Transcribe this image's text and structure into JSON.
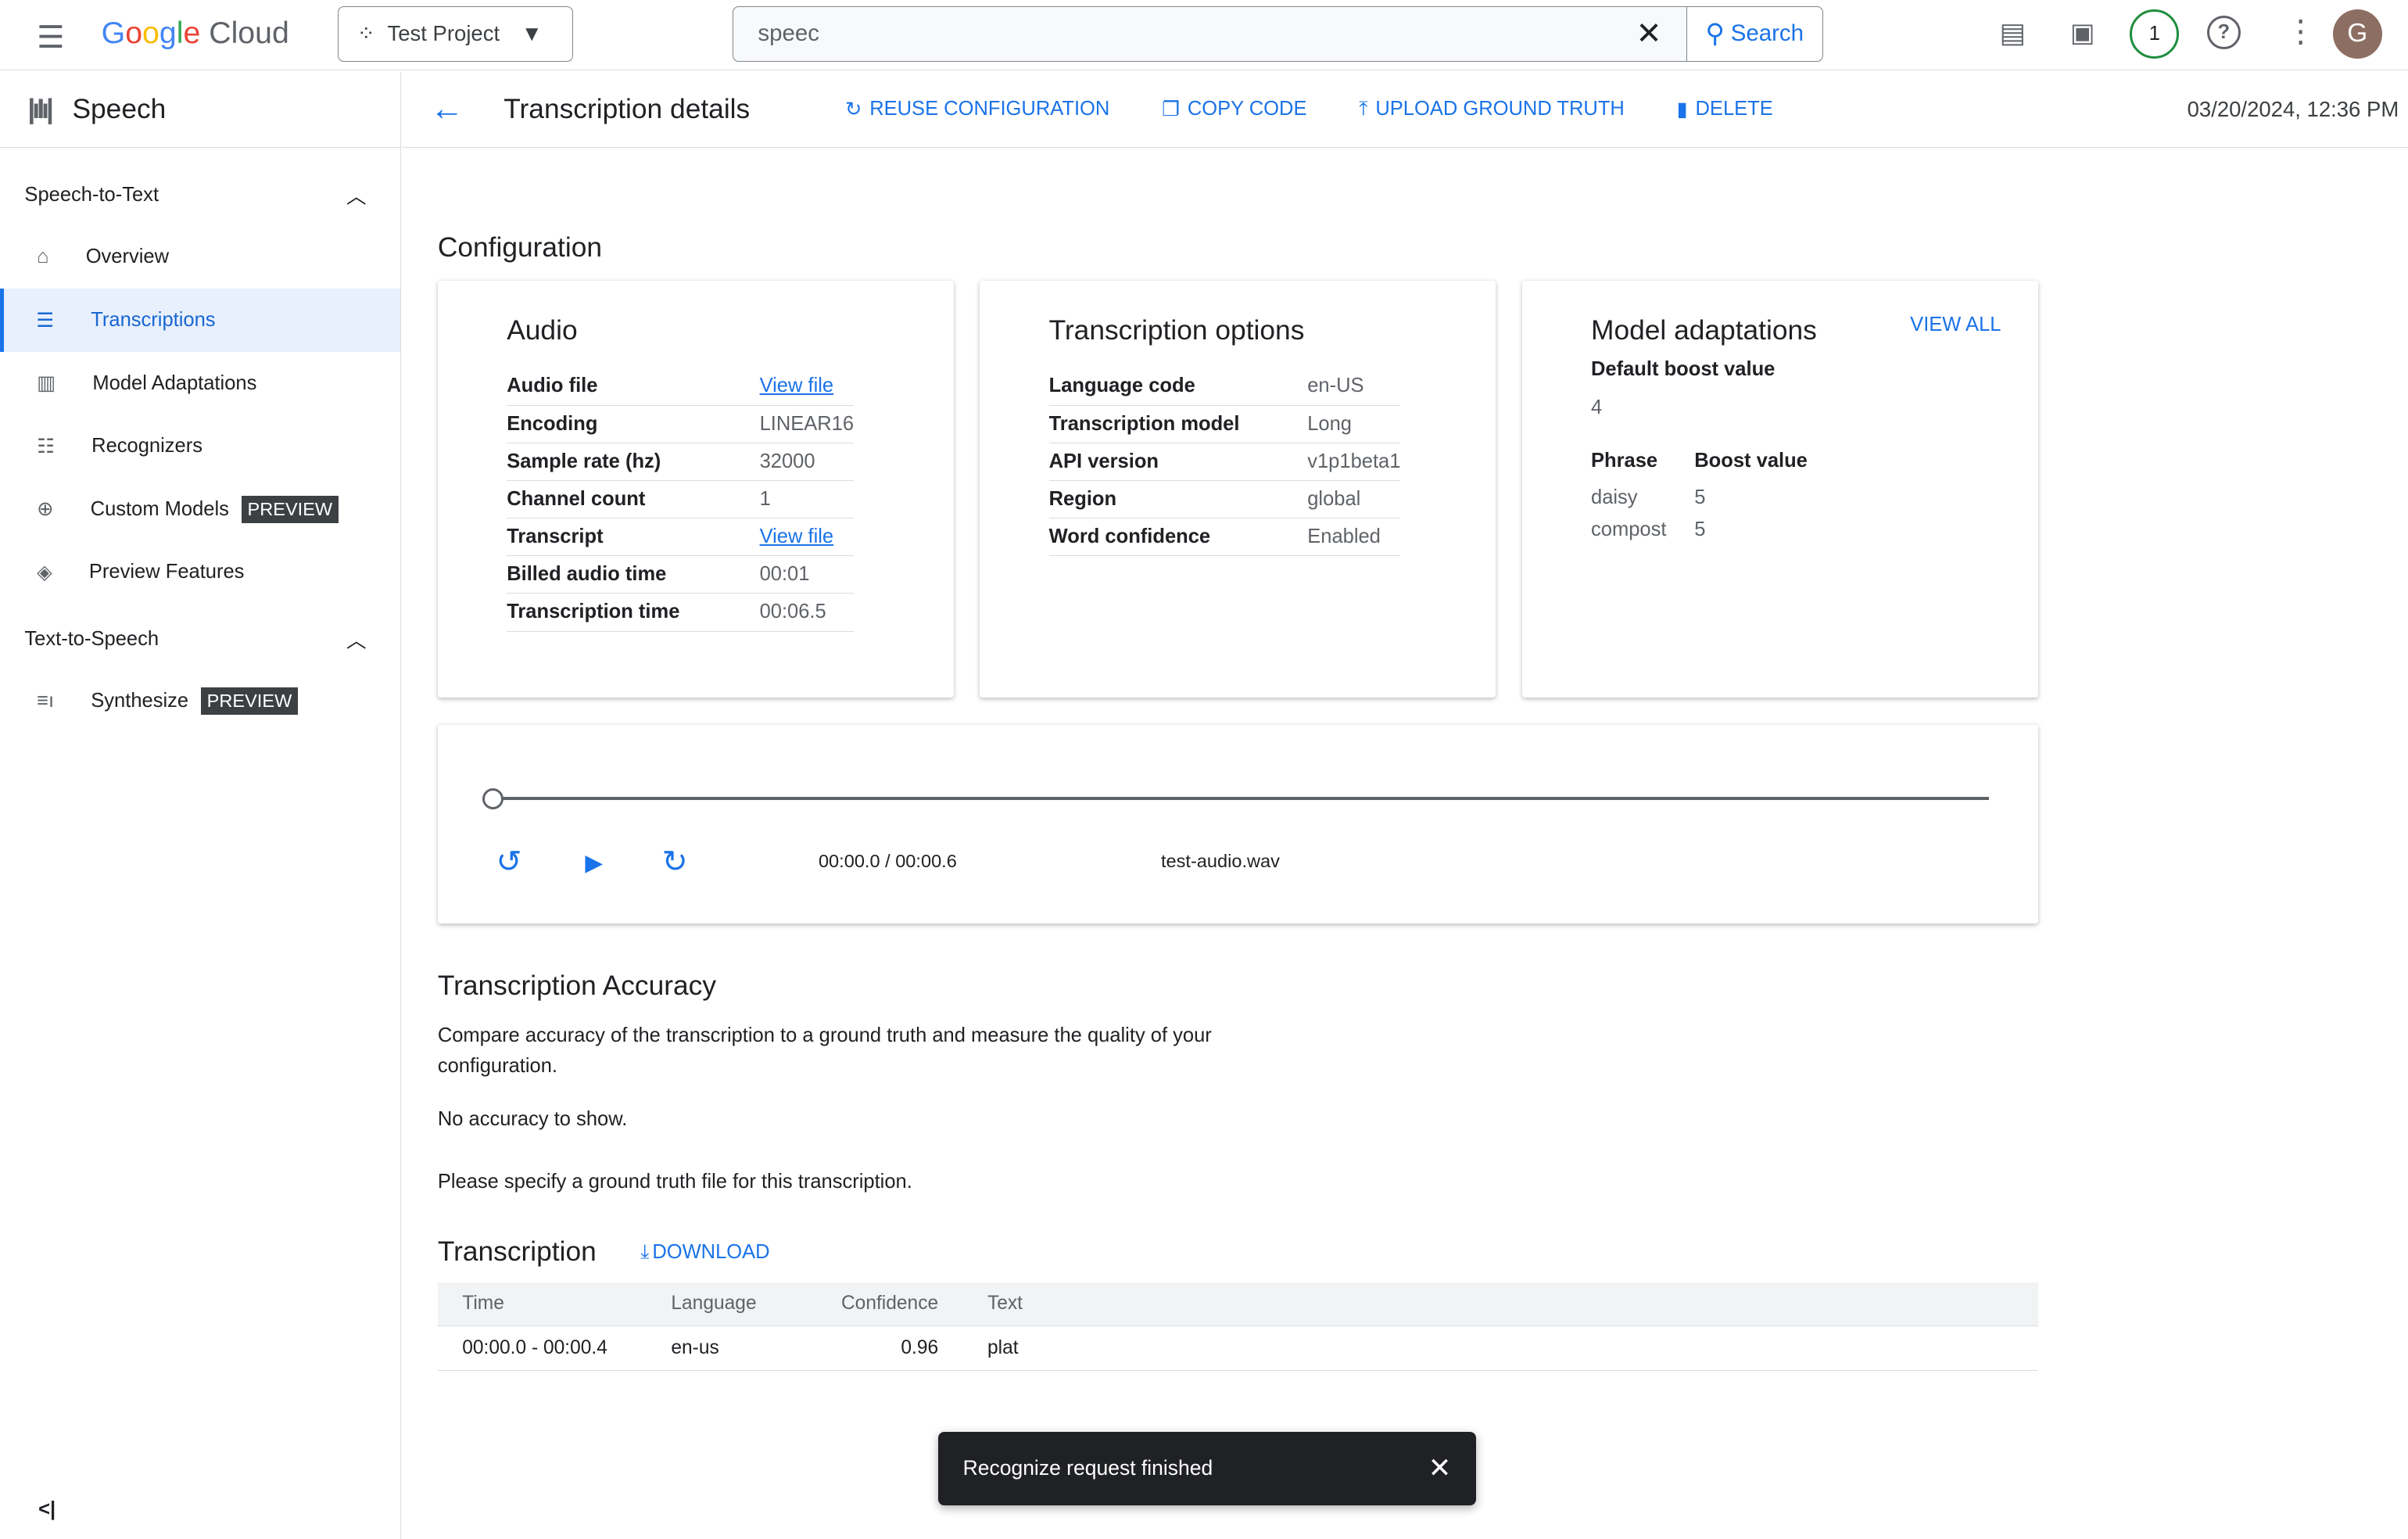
{
  "topbar": {
    "logo": "Google Cloud",
    "project": "Test Project",
    "search_value": "speec",
    "search_label": "Search",
    "notification_count": "1",
    "avatar": "G"
  },
  "sidebar": {
    "product": "Speech",
    "sections": [
      {
        "label": "Speech-to-Text",
        "items": [
          {
            "label": "Overview",
            "icon": "home-icon"
          },
          {
            "label": "Transcriptions",
            "icon": "list-icon",
            "active": true
          },
          {
            "label": "Model Adaptations",
            "icon": "chart-icon"
          },
          {
            "label": "Recognizers",
            "icon": "grid-list-icon"
          },
          {
            "label": "Custom Models",
            "badge": "PREVIEW",
            "icon": "custom-model-icon"
          },
          {
            "label": "Preview Features",
            "icon": "layers-icon"
          }
        ]
      },
      {
        "label": "Text-to-Speech",
        "items": [
          {
            "label": "Synthesize",
            "badge": "PREVIEW",
            "icon": "synthesize-icon"
          }
        ]
      }
    ]
  },
  "header": {
    "title": "Transcription details",
    "actions": [
      "REUSE CONFIGURATION",
      "COPY CODE",
      "UPLOAD GROUND TRUTH",
      "DELETE"
    ],
    "timestamp": "03/20/2024, 12:36 PM"
  },
  "config": {
    "title": "Configuration",
    "audio": {
      "title": "Audio",
      "rows": [
        [
          "Audio file",
          "View file"
        ],
        [
          "Encoding",
          "LINEAR16"
        ],
        [
          "Sample rate (hz)",
          "32000"
        ],
        [
          "Channel count",
          "1"
        ],
        [
          "Transcript",
          "View file"
        ],
        [
          "Billed audio time",
          "00:01"
        ],
        [
          "Transcription time",
          "00:06.5"
        ]
      ]
    },
    "options": {
      "title": "Transcription options",
      "rows": [
        [
          "Language code",
          "en-US"
        ],
        [
          "Transcription model",
          "Long"
        ],
        [
          "API version",
          "v1p1beta1"
        ],
        [
          "Region",
          "global"
        ],
        [
          "Word confidence",
          "Enabled"
        ]
      ]
    },
    "adaptations": {
      "title": "Model adaptations",
      "view_all": "VIEW ALL",
      "default_boost_label": "Default boost value",
      "default_boost": "4",
      "phrase_header": "Phrase",
      "boost_header": "Boost value",
      "phrases": [
        [
          "daisy",
          "5"
        ],
        [
          "compost",
          "5"
        ]
      ]
    }
  },
  "player": {
    "time": "00:00.0 / 00:00.6",
    "file": "test-audio.wav",
    "progress": 0
  },
  "accuracy": {
    "title": "Transcription Accuracy",
    "desc": "Compare accuracy of the transcription to a ground truth and measure the quality of your configuration.",
    "none": "No accuracy to show.",
    "hint": "Please specify a ground truth file for this transcription."
  },
  "transcription": {
    "title": "Transcription",
    "download": "DOWNLOAD",
    "headers": [
      "Time",
      "Language",
      "Confidence",
      "Text"
    ],
    "rows": [
      [
        "00:00.0 - 00:00.4",
        "en-us",
        "0.96",
        "plat"
      ]
    ]
  },
  "toast": {
    "message": "Recognize request finished"
  }
}
